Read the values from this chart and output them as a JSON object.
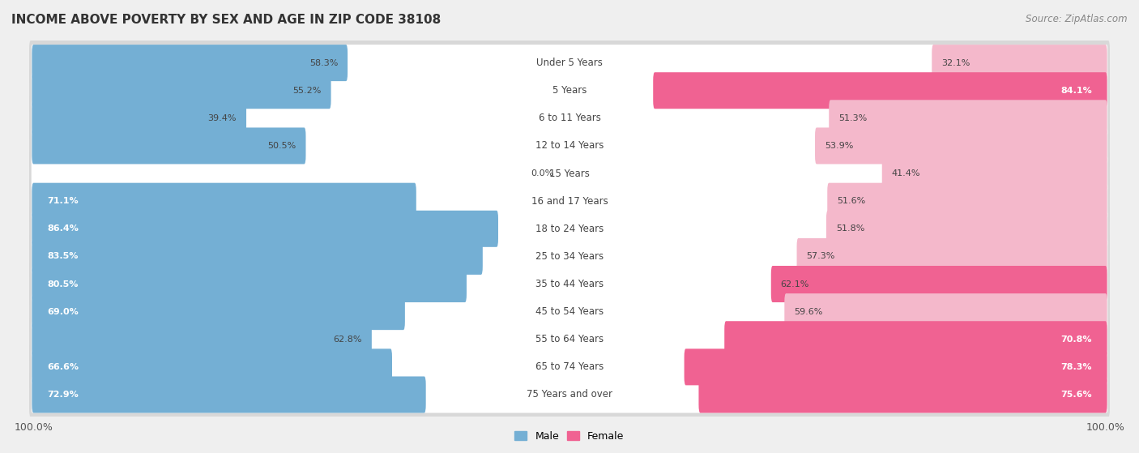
{
  "title": "INCOME ABOVE POVERTY BY SEX AND AGE IN ZIP CODE 38108",
  "source": "Source: ZipAtlas.com",
  "categories": [
    "Under 5 Years",
    "5 Years",
    "6 to 11 Years",
    "12 to 14 Years",
    "15 Years",
    "16 and 17 Years",
    "18 to 24 Years",
    "25 to 34 Years",
    "35 to 44 Years",
    "45 to 54 Years",
    "55 to 64 Years",
    "65 to 74 Years",
    "75 Years and over"
  ],
  "male_values": [
    58.3,
    55.2,
    39.4,
    50.5,
    0.0,
    71.1,
    86.4,
    83.5,
    80.5,
    69.0,
    62.8,
    66.6,
    72.9
  ],
  "female_values": [
    32.1,
    84.1,
    51.3,
    53.9,
    41.4,
    51.6,
    51.8,
    57.3,
    62.1,
    59.6,
    70.8,
    78.3,
    75.6
  ],
  "male_color": "#74afd4",
  "female_color_low": "#f4b8cb",
  "female_color_high": "#f06292",
  "female_threshold": 60,
  "background_color": "#efefef",
  "row_bg_color": "#ffffff",
  "row_outline_color": "#d8d8d8",
  "xlim": 100.0,
  "legend_labels": [
    "Male",
    "Female"
  ],
  "label_inside_threshold_male": 65,
  "label_inside_threshold_female": 65
}
